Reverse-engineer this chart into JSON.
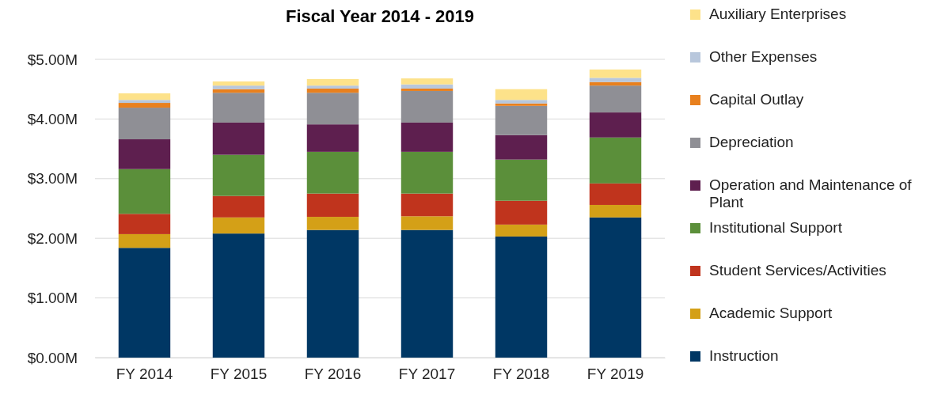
{
  "chart_data": {
    "type": "bar",
    "title": "Fiscal Year 2014 - 2019",
    "stacked": true,
    "grid": "y",
    "legend": "right",
    "categories": [
      "FY 2014",
      "FY 2015",
      "FY 2016",
      "FY 2017",
      "FY 2018",
      "FY 2019"
    ],
    "ylim": [
      0,
      5
    ],
    "yticks": [
      {
        "value": 0,
        "label": "$0.00M"
      },
      {
        "value": 1,
        "label": "$1.00M"
      },
      {
        "value": 2,
        "label": "$2.00M"
      },
      {
        "value": 3,
        "label": "$3.00M"
      },
      {
        "value": 4,
        "label": "$4.00M"
      },
      {
        "value": 5,
        "label": "$5.00M"
      }
    ],
    "series": [
      {
        "name": "Instruction",
        "color": "#003764",
        "values": [
          1.84,
          2.08,
          2.14,
          2.14,
          2.03,
          2.35
        ]
      },
      {
        "name": "Academic Support",
        "color": "#d4a017",
        "values": [
          0.23,
          0.27,
          0.22,
          0.23,
          0.2,
          0.21
        ]
      },
      {
        "name": "Student Services/Activities",
        "color": "#c0341d",
        "values": [
          0.34,
          0.36,
          0.39,
          0.38,
          0.4,
          0.36
        ]
      },
      {
        "name": "Institutional Support",
        "color": "#5b8f3a",
        "values": [
          0.75,
          0.69,
          0.7,
          0.7,
          0.69,
          0.77
        ]
      },
      {
        "name": "Operation and Maintenance of Plant",
        "color": "#5e1f4f",
        "values": [
          0.5,
          0.54,
          0.46,
          0.49,
          0.41,
          0.42
        ]
      },
      {
        "name": "Depreciation",
        "color": "#8f8f95",
        "values": [
          0.53,
          0.5,
          0.53,
          0.53,
          0.49,
          0.45
        ]
      },
      {
        "name": "Capital Outlay",
        "color": "#e8801e",
        "values": [
          0.08,
          0.06,
          0.07,
          0.04,
          0.04,
          0.06
        ]
      },
      {
        "name": "Other Expenses",
        "color": "#b8c7dc",
        "values": [
          0.05,
          0.06,
          0.05,
          0.07,
          0.06,
          0.07
        ]
      },
      {
        "name": "Auxiliary Enterprises",
        "color": "#fde28a",
        "values": [
          0.11,
          0.07,
          0.11,
          0.1,
          0.18,
          0.14
        ]
      }
    ]
  }
}
